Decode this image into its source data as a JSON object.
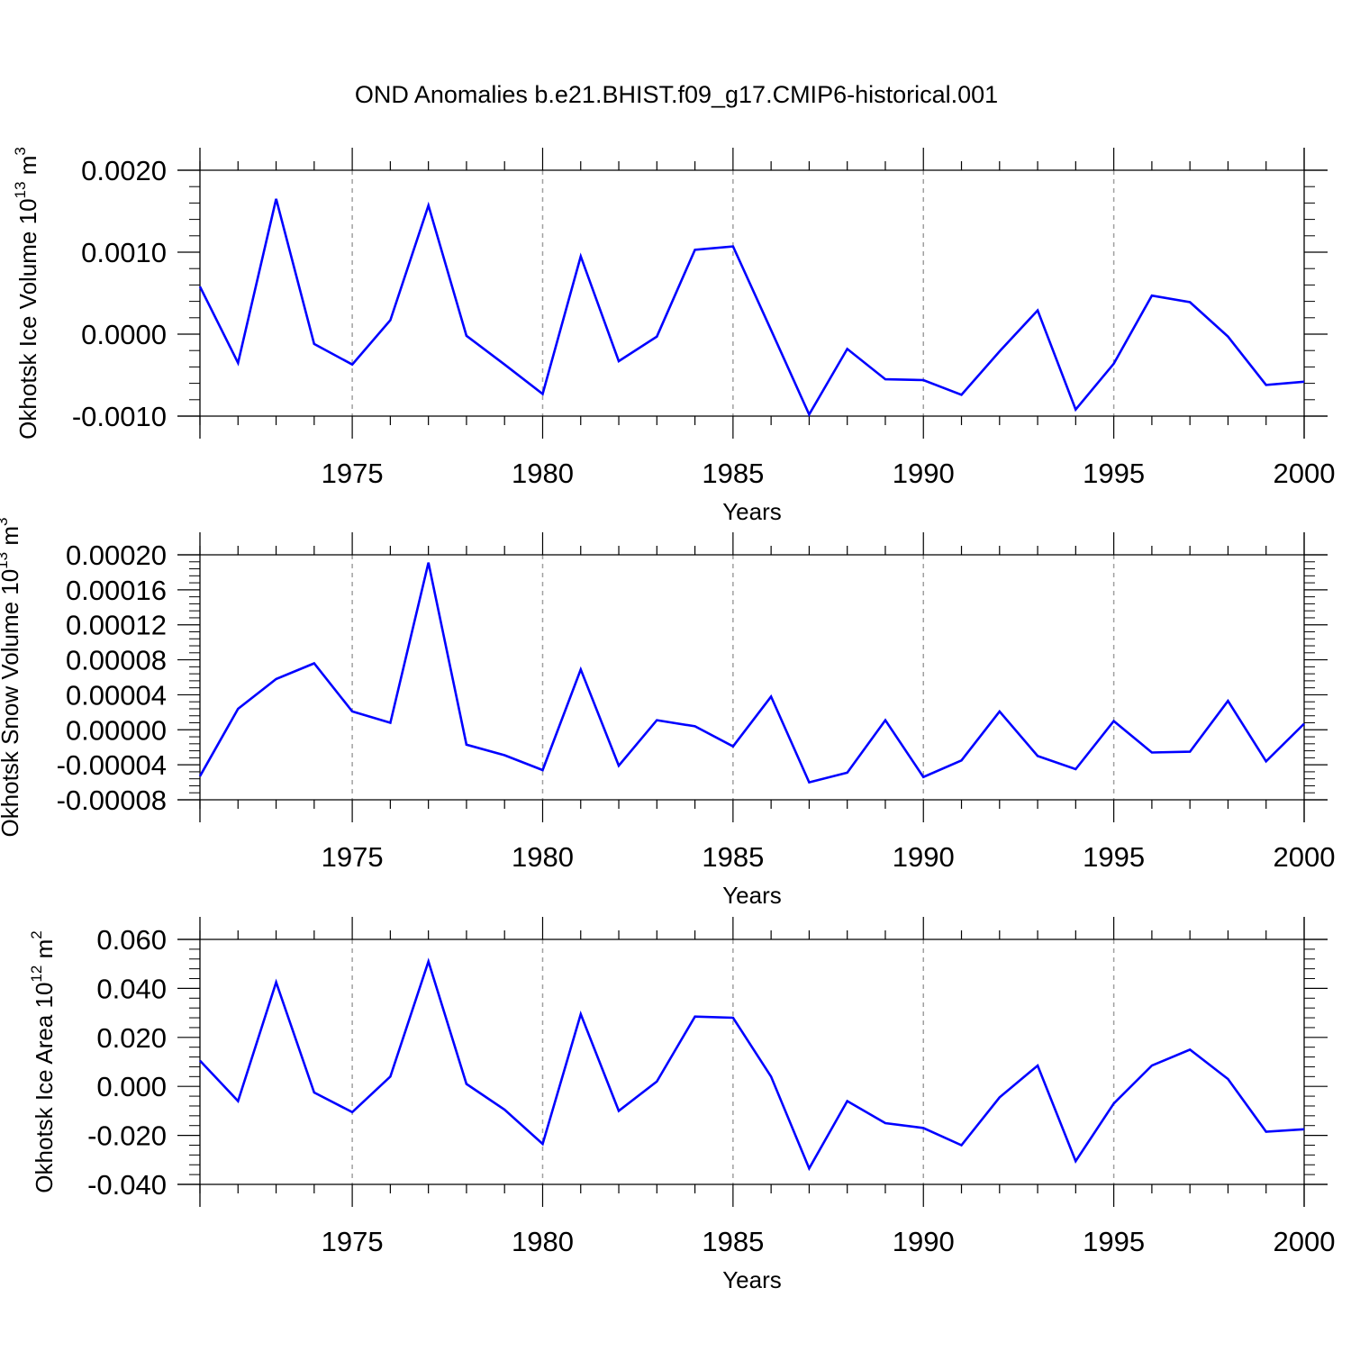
{
  "chart_data": {
    "title": "OND Anomalies b.e21.BHIST.f09_g17.CMIP6-historical.001",
    "panels": [
      {
        "type": "line",
        "ylabel_text": "Okhotsk Ice Volume 10",
        "ylabel_exponent": "13",
        "ylabel_unit": " m",
        "ylabel_unit_exponent": "3",
        "xlabel": "Years",
        "xlim": [
          1971,
          2000
        ],
        "ylim": [
          -0.001,
          0.002
        ],
        "yticks": [
          -0.001,
          0,
          0.001,
          0.002
        ],
        "ytick_labels": [
          "-0.0010",
          "0.0000",
          "0.0010",
          "0.0020"
        ],
        "xticks": [
          1975,
          1980,
          1985,
          1990,
          1995,
          2000
        ],
        "xtick_labels": [
          "1975",
          "1980",
          "1985",
          "1990",
          "1995",
          "2000"
        ],
        "series": [
          {
            "name": "Okhotsk Ice Volume",
            "color": "#0000ff",
            "x": [
              1971,
              1972,
              1973,
              1974,
              1975,
              1976,
              1977,
              1978,
              1979,
              1980,
              1981,
              1982,
              1983,
              1984,
              1985,
              1986,
              1987,
              1988,
              1989,
              1990,
              1991,
              1992,
              1993,
              1994,
              1995,
              1996,
              1997,
              1998,
              1999,
              2000
            ],
            "values": [
              0.00058,
              -0.00035,
              0.00165,
              -0.00012,
              -0.00037,
              0.00017,
              0.00157,
              -2e-05,
              -0.00037,
              -0.00073,
              0.00095,
              -0.00033,
              -3e-05,
              0.00103,
              0.00107,
              5e-05,
              -0.00098,
              -0.00018,
              -0.00055,
              -0.00056,
              -0.00074,
              -0.00021,
              0.00029,
              -0.00092,
              -0.00036,
              0.00047,
              0.00039,
              -3e-05,
              -0.00062,
              -0.00058
            ]
          }
        ]
      },
      {
        "type": "line",
        "ylabel_text": "Okhotsk Snow Volume 10",
        "ylabel_exponent": "13",
        "ylabel_unit": " m",
        "ylabel_unit_exponent": "3",
        "xlabel": "Years",
        "xlim": [
          1971,
          2000
        ],
        "ylim": [
          -8e-05,
          0.0002
        ],
        "yticks": [
          -8e-05,
          -4e-05,
          0,
          4e-05,
          8e-05,
          0.00012,
          0.00016,
          0.0002
        ],
        "ytick_labels": [
          "-0.00008",
          "-0.00004",
          "0.00000",
          "0.00004",
          "0.00008",
          "0.00012",
          "0.00016",
          "0.00020"
        ],
        "xticks": [
          1975,
          1980,
          1985,
          1990,
          1995,
          2000
        ],
        "xtick_labels": [
          "1975",
          "1980",
          "1985",
          "1990",
          "1995",
          "2000"
        ],
        "series": [
          {
            "name": "Okhotsk Snow Volume",
            "color": "#0000ff",
            "x": [
              1971,
              1972,
              1973,
              1974,
              1975,
              1976,
              1977,
              1978,
              1979,
              1980,
              1981,
              1982,
              1983,
              1984,
              1985,
              1986,
              1987,
              1988,
              1989,
              1990,
              1991,
              1992,
              1993,
              1994,
              1995,
              1996,
              1997,
              1998,
              1999,
              2000
            ],
            "values": [
              -5.3e-05,
              2.4e-05,
              5.8e-05,
              7.6e-05,
              2.1e-05,
              8e-06,
              0.000191,
              -1.7e-05,
              -2.9e-05,
              -4.6e-05,
              6.9e-05,
              -4.1e-05,
              1.1e-05,
              4e-06,
              -1.9e-05,
              3.8e-05,
              -6e-05,
              -4.9e-05,
              1.1e-05,
              -5.4e-05,
              -3.5e-05,
              2.1e-05,
              -3e-05,
              -4.5e-05,
              1e-05,
              -2.6e-05,
              -2.5e-05,
              3.3e-05,
              -3.6e-05,
              7e-06
            ]
          }
        ]
      },
      {
        "type": "line",
        "ylabel_text": "Okhotsk Ice Area 10",
        "ylabel_exponent": "12",
        "ylabel_unit": " m",
        "ylabel_unit_exponent": "2",
        "xlabel": "Years",
        "xlim": [
          1971,
          2000
        ],
        "ylim": [
          -0.04,
          0.06
        ],
        "yticks": [
          -0.04,
          -0.02,
          0,
          0.02,
          0.04,
          0.06
        ],
        "ytick_labels": [
          "-0.040",
          "-0.020",
          "0.000",
          "0.020",
          "0.040",
          "0.060"
        ],
        "xticks": [
          1975,
          1980,
          1985,
          1990,
          1995,
          2000
        ],
        "xtick_labels": [
          "1975",
          "1980",
          "1985",
          "1990",
          "1995",
          "2000"
        ],
        "series": [
          {
            "name": "Okhotsk Ice Area",
            "color": "#0000ff",
            "x": [
              1971,
              1972,
              1973,
              1974,
              1975,
              1976,
              1977,
              1978,
              1979,
              1980,
              1981,
              1982,
              1983,
              1984,
              1985,
              1986,
              1987,
              1988,
              1989,
              1990,
              1991,
              1992,
              1993,
              1994,
              1995,
              1996,
              1997,
              1998,
              1999,
              2000
            ],
            "values": [
              0.0105,
              -0.006,
              0.0425,
              -0.0025,
              -0.0105,
              0.004,
              0.051,
              0.001,
              -0.0095,
              -0.0235,
              0.0295,
              -0.01,
              0.002,
              0.0285,
              0.028,
              0.004,
              -0.0335,
              -0.006,
              -0.015,
              -0.017,
              -0.024,
              -0.0045,
              0.0085,
              -0.0305,
              -0.007,
              0.0085,
              0.015,
              0.003,
              -0.0185,
              -0.0175
            ]
          }
        ]
      }
    ]
  }
}
